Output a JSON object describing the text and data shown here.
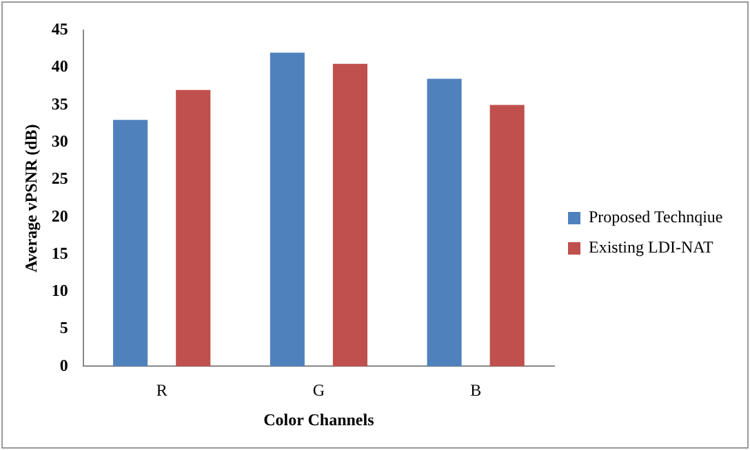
{
  "chart_data": {
    "type": "bar",
    "xlabel": "Color Channels",
    "ylabel": "Average vPSNR (dB)",
    "categories": [
      "R",
      "G",
      "B"
    ],
    "series": [
      {
        "name": "Proposed Technqiue",
        "color": "#4f81bd",
        "values": [
          33,
          42,
          38.5
        ]
      },
      {
        "name": "Existing LDI-NAT",
        "color": "#c0504d",
        "values": [
          37,
          40.5,
          35
        ]
      }
    ],
    "ylim": [
      0,
      45
    ],
    "yticks": [
      0,
      5,
      10,
      15,
      20,
      25,
      30,
      35,
      40,
      45
    ],
    "grid": false,
    "legend": "right"
  }
}
